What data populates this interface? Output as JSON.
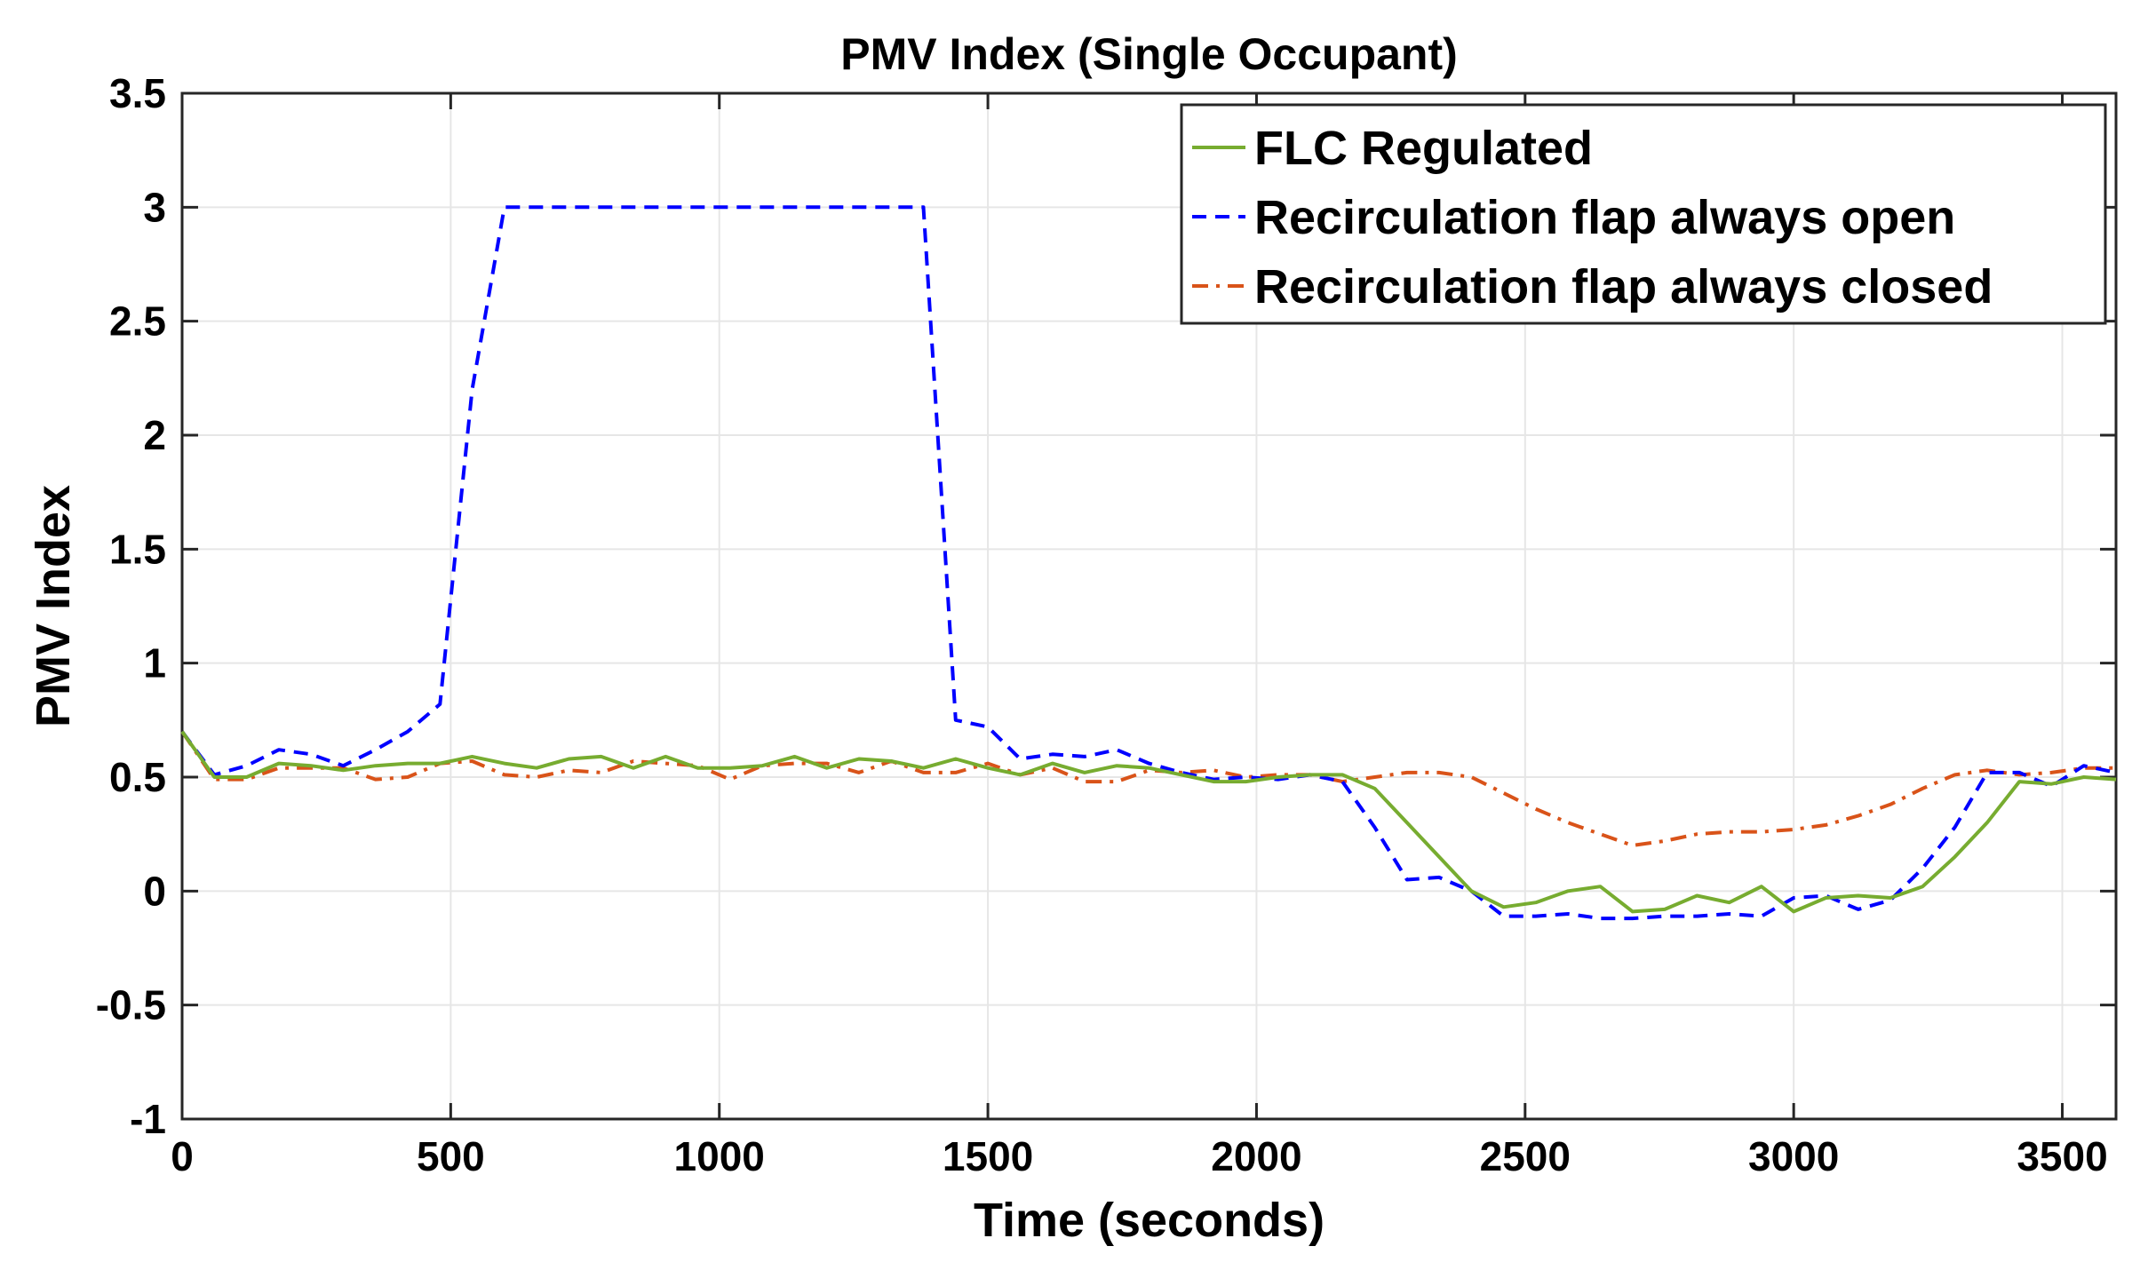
{
  "chart_data": {
    "type": "line",
    "title": "PMV Index (Single Occupant)",
    "xlabel": "Time (seconds)",
    "ylabel": "PMV Index",
    "xlim": [
      0,
      3600
    ],
    "ylim": [
      -1,
      3.5
    ],
    "grid": true,
    "legend_position": "top-right",
    "xticks": [
      0,
      500,
      1000,
      1500,
      2000,
      2500,
      3000,
      3500
    ],
    "yticks": [
      -1,
      -0.5,
      0,
      0.5,
      1,
      1.5,
      2,
      2.5,
      3,
      3.5
    ],
    "xtick_labels": [
      "0",
      "500",
      "1000",
      "1500",
      "2000",
      "2500",
      "3000",
      "3500"
    ],
    "ytick_labels": [
      "-1",
      "-0.5",
      "0",
      "0.5",
      "1",
      "1.5",
      "2",
      "2.5",
      "3",
      "3.5"
    ],
    "series": [
      {
        "name": "FLC Regulated",
        "color": "#77AC30",
        "style": "solid",
        "x": [
          0,
          60,
          120,
          180,
          240,
          300,
          360,
          420,
          480,
          540,
          600,
          660,
          720,
          780,
          840,
          900,
          960,
          1020,
          1080,
          1140,
          1200,
          1260,
          1320,
          1380,
          1440,
          1500,
          1560,
          1620,
          1680,
          1740,
          1800,
          1860,
          1920,
          1980,
          2040,
          2100,
          2160,
          2220,
          2280,
          2340,
          2400,
          2460,
          2520,
          2580,
          2640,
          2700,
          2760,
          2820,
          2880,
          2940,
          3000,
          3060,
          3120,
          3180,
          3240,
          3300,
          3360,
          3420,
          3480,
          3540,
          3600
        ],
        "y": [
          0.7,
          0.5,
          0.5,
          0.56,
          0.55,
          0.53,
          0.55,
          0.56,
          0.56,
          0.59,
          0.56,
          0.54,
          0.58,
          0.59,
          0.54,
          0.59,
          0.54,
          0.54,
          0.55,
          0.59,
          0.54,
          0.58,
          0.57,
          0.54,
          0.58,
          0.54,
          0.51,
          0.56,
          0.52,
          0.55,
          0.54,
          0.51,
          0.48,
          0.48,
          0.5,
          0.51,
          0.51,
          0.45,
          0.3,
          0.15,
          0.0,
          -0.07,
          -0.05,
          0.0,
          0.02,
          -0.09,
          -0.08,
          -0.02,
          -0.05,
          0.02,
          -0.09,
          -0.03,
          -0.02,
          -0.03,
          0.02,
          0.15,
          0.3,
          0.48,
          0.47,
          0.5,
          0.49
        ]
      },
      {
        "name": "Recirculation flap always open",
        "color": "#0000FF",
        "style": "dashed",
        "x": [
          0,
          60,
          120,
          180,
          240,
          300,
          360,
          420,
          480,
          540,
          600,
          660,
          720,
          780,
          840,
          900,
          960,
          1020,
          1080,
          1140,
          1200,
          1260,
          1320,
          1380,
          1440,
          1500,
          1560,
          1620,
          1680,
          1740,
          1800,
          1860,
          1920,
          1980,
          2040,
          2100,
          2160,
          2220,
          2280,
          2340,
          2400,
          2460,
          2520,
          2580,
          2640,
          2700,
          2760,
          2820,
          2880,
          2940,
          3000,
          3060,
          3120,
          3180,
          3240,
          3300,
          3360,
          3420,
          3480,
          3540,
          3600
        ],
        "y": [
          0.7,
          0.51,
          0.55,
          0.62,
          0.6,
          0.55,
          0.62,
          0.7,
          0.82,
          2.2,
          3.0,
          3.0,
          3.0,
          3.0,
          3.0,
          3.0,
          3.0,
          3.0,
          3.0,
          3.0,
          3.0,
          3.0,
          3.0,
          3.0,
          0.75,
          0.72,
          0.58,
          0.6,
          0.59,
          0.62,
          0.56,
          0.52,
          0.49,
          0.5,
          0.49,
          0.51,
          0.48,
          0.28,
          0.05,
          0.06,
          0.0,
          -0.11,
          -0.11,
          -0.1,
          -0.12,
          -0.12,
          -0.11,
          -0.11,
          -0.1,
          -0.11,
          -0.03,
          -0.02,
          -0.08,
          -0.04,
          0.1,
          0.28,
          0.52,
          0.52,
          0.46,
          0.55,
          0.52
        ]
      },
      {
        "name": "Recirculation flap always closed",
        "color": "#D95319",
        "style": "dashdot",
        "x": [
          0,
          60,
          120,
          180,
          240,
          300,
          360,
          420,
          480,
          540,
          600,
          660,
          720,
          780,
          840,
          900,
          960,
          1020,
          1080,
          1140,
          1200,
          1260,
          1320,
          1380,
          1440,
          1500,
          1560,
          1620,
          1680,
          1740,
          1800,
          1860,
          1920,
          1980,
          2040,
          2100,
          2160,
          2220,
          2280,
          2340,
          2400,
          2460,
          2520,
          2580,
          2640,
          2700,
          2760,
          2820,
          2880,
          2940,
          3000,
          3060,
          3120,
          3180,
          3240,
          3300,
          3360,
          3420,
          3480,
          3540,
          3600
        ],
        "y": [
          0.7,
          0.49,
          0.49,
          0.54,
          0.54,
          0.54,
          0.49,
          0.5,
          0.56,
          0.57,
          0.51,
          0.5,
          0.53,
          0.52,
          0.57,
          0.56,
          0.55,
          0.49,
          0.55,
          0.56,
          0.56,
          0.52,
          0.57,
          0.52,
          0.52,
          0.56,
          0.51,
          0.54,
          0.48,
          0.48,
          0.53,
          0.52,
          0.53,
          0.5,
          0.51,
          0.51,
          0.48,
          0.5,
          0.52,
          0.52,
          0.5,
          0.43,
          0.36,
          0.3,
          0.25,
          0.2,
          0.22,
          0.25,
          0.26,
          0.26,
          0.27,
          0.29,
          0.33,
          0.38,
          0.45,
          0.51,
          0.53,
          0.51,
          0.52,
          0.54,
          0.54
        ]
      }
    ]
  }
}
